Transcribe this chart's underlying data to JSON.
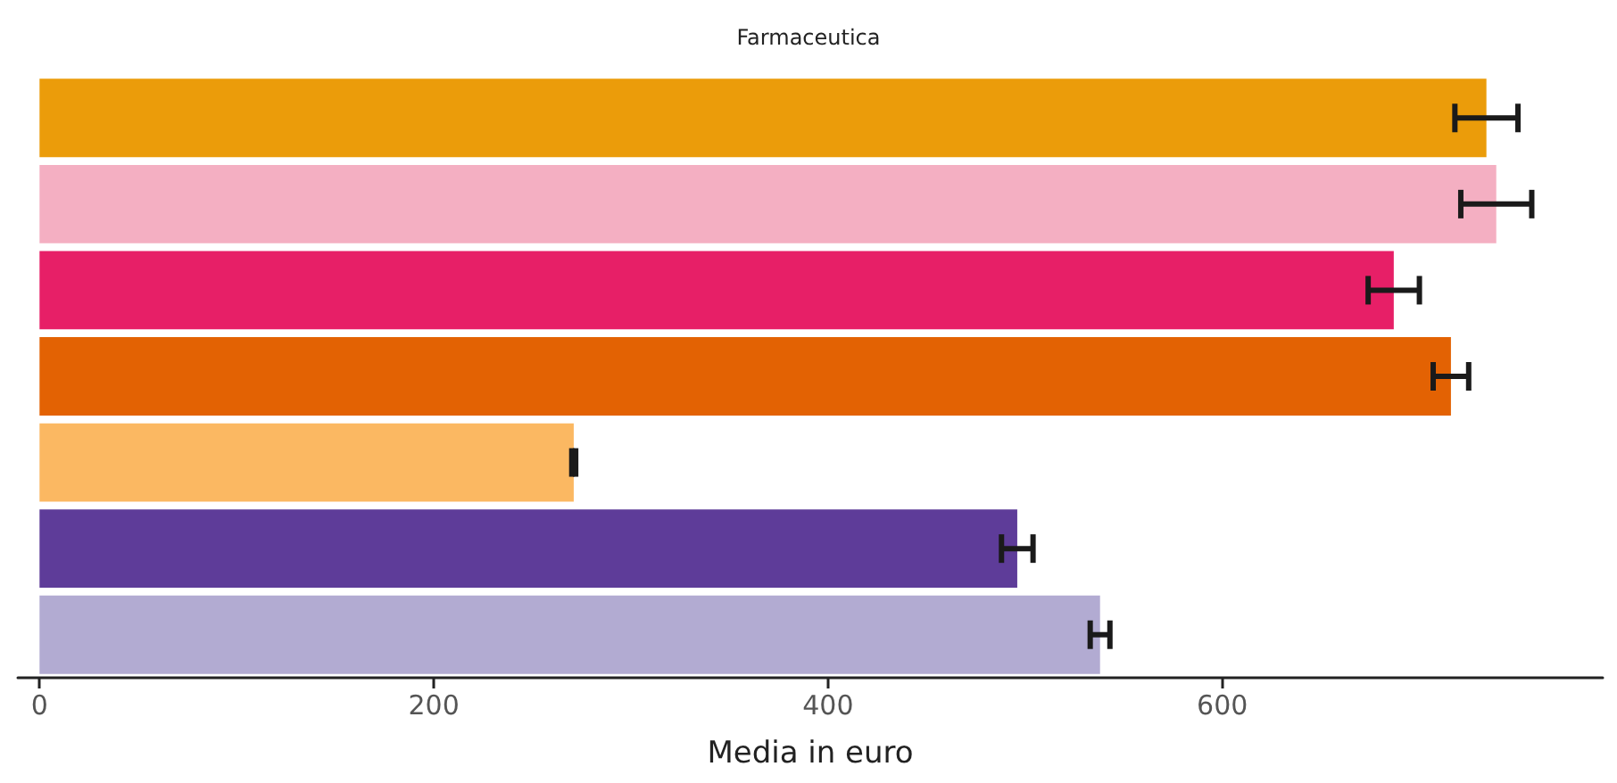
{
  "chart_data": {
    "type": "bar",
    "orientation": "horizontal",
    "title": "Farmaceutica",
    "xlabel": "Media in euro",
    "categories": [
      null,
      null,
      null,
      null,
      null,
      null,
      null
    ],
    "values": [
      734,
      739,
      687,
      716,
      271,
      496,
      538
    ],
    "errors": [
      16,
      18,
      13,
      9,
      1,
      8,
      5
    ],
    "colors": [
      "#eb9c0a",
      "#f4afc2",
      "#e71f67",
      "#e36203",
      "#fbb862",
      "#5e3c99",
      "#b2abd2"
    ],
    "xlim": [
      -11,
      793
    ],
    "xticks": [
      0,
      200,
      400,
      600
    ],
    "grid": false
  }
}
